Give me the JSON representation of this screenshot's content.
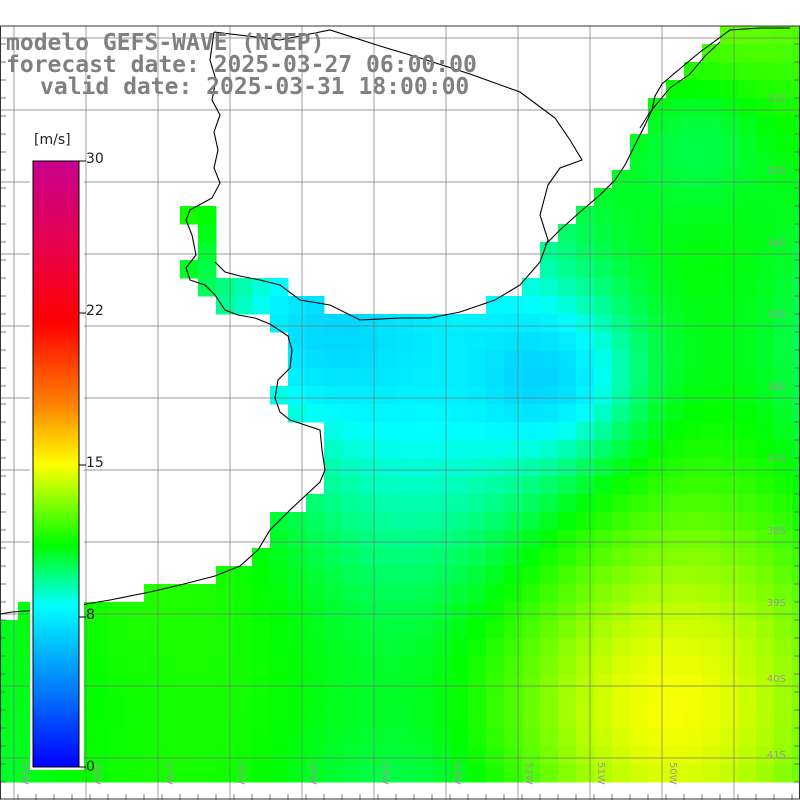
{
  "header": {
    "model_line": "modelo GEFS-WAVE (NCEP)",
    "forecast_line": "forecast date: 2025-03-27 06:00:00",
    "valid_line": "valid date: 2025-03-31 18:00:00"
  },
  "colorbar": {
    "unit": "[m/s]",
    "ticks": [
      "30",
      "22",
      "15",
      "8",
      "0"
    ],
    "min": 0,
    "max": 30
  },
  "axes": {
    "lat_labels": [
      "32S",
      "33S",
      "34S",
      "35S",
      "36S",
      "37S",
      "38S",
      "39S",
      "40S",
      "41S"
    ],
    "lon_labels": [
      "59W",
      "58W",
      "57W",
      "56W",
      "55W",
      "54W",
      "53W",
      "52W",
      "51W",
      "50W"
    ]
  },
  "colors": {
    "land": "#ffffff",
    "grid": "#707070",
    "coast": "#000000",
    "arrow": "#ffffff",
    "label": "#808080"
  }
}
